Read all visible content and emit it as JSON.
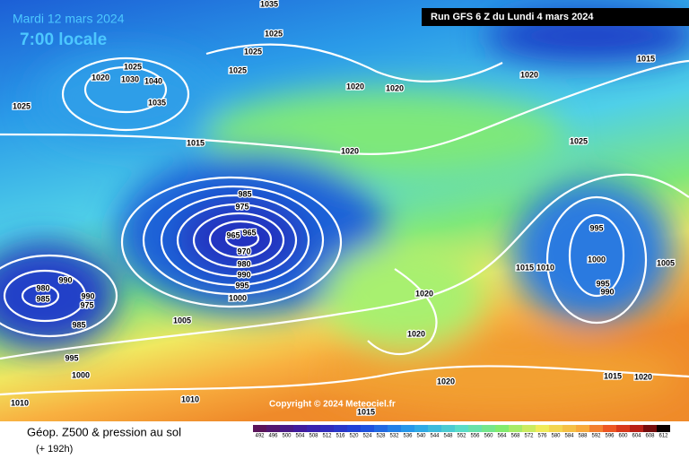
{
  "header": {
    "date": "Mardi 12 mars 2024",
    "time": "7:00 locale",
    "run": "Run GFS 6 Z du Lundi 4 mars 2024"
  },
  "copyright": "Copyright © 2024 Meteociel.fr",
  "footer": {
    "title": "Géop. Z500 & pression au sol",
    "range": "(+ 192h)"
  },
  "legend": {
    "scale": [
      492,
      496,
      500,
      504,
      508,
      512,
      516,
      520,
      524,
      528,
      532,
      536,
      540,
      544,
      548,
      552,
      556,
      560,
      564,
      568,
      572,
      576,
      580,
      584,
      588,
      592,
      596,
      600,
      604,
      608,
      612
    ]
  },
  "isobar_labels": [
    1035,
    1025,
    1025,
    1025,
    1020,
    1025,
    1030,
    1040,
    1035,
    1025,
    1020,
    1020,
    1020,
    1015,
    1015,
    1020,
    1025,
    985,
    975,
    965,
    965,
    970,
    980,
    990,
    995,
    1000,
    995,
    1000,
    1005,
    1015,
    1010,
    995,
    990,
    990,
    980,
    985,
    990,
    975,
    985,
    1005,
    1020,
    1020,
    995,
    1000,
    1010,
    1010,
    1020,
    1015,
    1020,
    1015
  ]
}
